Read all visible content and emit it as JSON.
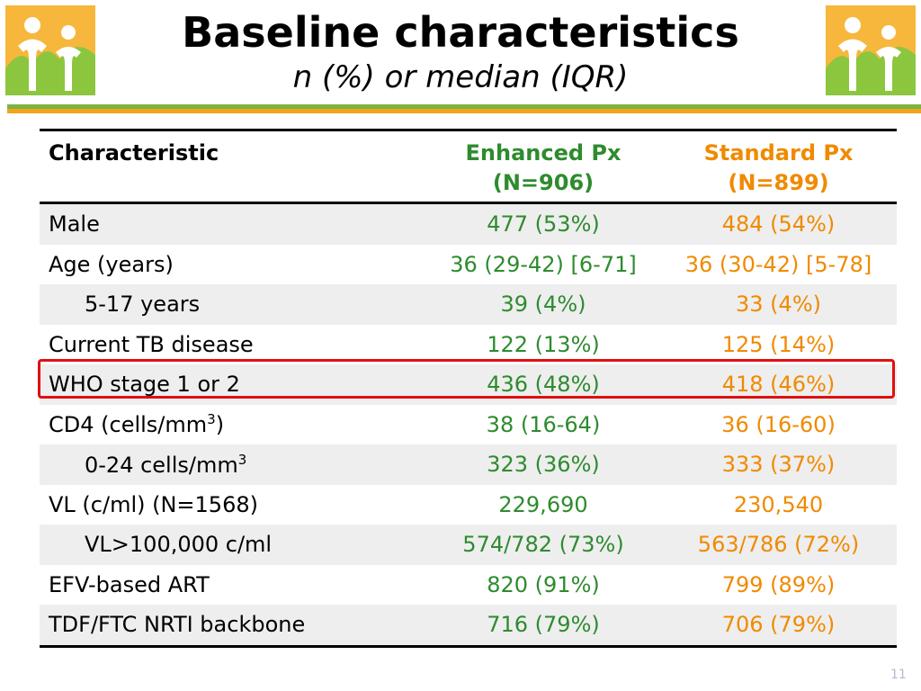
{
  "header": {
    "title": "Baseline characteristics",
    "subtitle": "n (%) or median (IQR)"
  },
  "colors": {
    "enhanced": "#2e8b2e",
    "standard": "#f08a00",
    "highlight": "#e01010",
    "bar_green": "#7cb342",
    "bar_orange": "#f4a41c"
  },
  "table": {
    "columns": {
      "characteristic": "Characteristic",
      "enhanced_line1": "Enhanced Px",
      "enhanced_line2": "(N=906)",
      "standard_line1": "Standard Px",
      "standard_line2": "(N=899)"
    },
    "rows": [
      {
        "label": "Male",
        "enhanced": "477 (53%)",
        "standard": "484 (54%)"
      },
      {
        "label": "Age (years)",
        "enhanced": "36 (29-42) [6-71]",
        "standard": "36 (30-42) [5-78]"
      },
      {
        "label": "5-17 years",
        "enhanced": "39 (4%)",
        "standard": "33 (4%)"
      },
      {
        "label": "Current TB disease",
        "enhanced": "122 (13%)",
        "standard": "125 (14%)"
      },
      {
        "label": "WHO stage 1 or 2",
        "enhanced": "436 (48%)",
        "standard": "418 (46%)"
      },
      {
        "label": "CD4 (cells/mm",
        "label_sup": "3",
        "label_after": ")",
        "enhanced": "38 (16-64)",
        "standard": "36 (16-60)"
      },
      {
        "label": "0-24 cells/mm",
        "label_sup": "3",
        "enhanced": "323 (36%)",
        "standard": "333 (37%)"
      },
      {
        "label": "VL (c/ml) (N=1568)",
        "enhanced": "229,690",
        "standard": "230,540"
      },
      {
        "label": "VL>100,000 c/ml",
        "enhanced": "574/782 (73%)",
        "standard": "563/786 (72%)"
      },
      {
        "label": "EFV-based ART",
        "enhanced": "820 (91%)",
        "standard": "799 (89%)"
      },
      {
        "label": "TDF/FTC NRTI backbone",
        "enhanced": "716 (79%)",
        "standard": "706 (79%)"
      }
    ]
  },
  "footer": {
    "page_number": "11"
  },
  "icons": {
    "logo": "family-logo-icon"
  }
}
